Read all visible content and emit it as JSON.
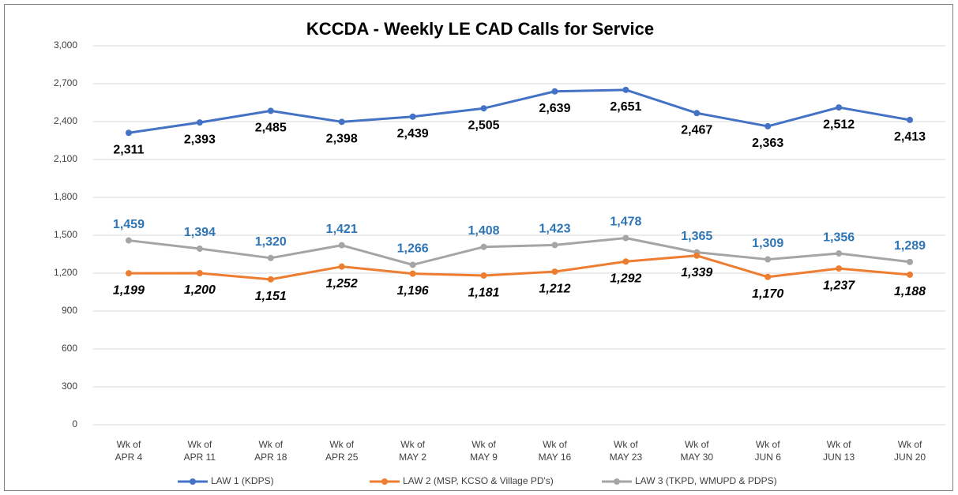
{
  "chart_data": {
    "type": "line",
    "title": "KCCDA - Weekly LE CAD Calls for Service",
    "categories": [
      "Wk of APR 4",
      "Wk of APR 11",
      "Wk of APR 18",
      "Wk of APR 25",
      "Wk of MAY 2",
      "Wk of MAY 9",
      "Wk of MAY 16",
      "Wk of MAY 23",
      "Wk of MAY 30",
      "Wk of JUN 6",
      "Wk of JUN 13",
      "Wk of JUN 20"
    ],
    "series": [
      {
        "name": "LAW 1 (KDPS)",
        "color": "#4472c4",
        "label_color": "#000000",
        "label_position": "below",
        "label_italic": false,
        "values": [
          2311,
          2393,
          2485,
          2398,
          2439,
          2505,
          2639,
          2651,
          2467,
          2363,
          2512,
          2413
        ],
        "value_labels": [
          "2,311",
          "2,393",
          "2,485",
          "2,398",
          "2,439",
          "2,505",
          "2,639",
          "2,651",
          "2,467",
          "2,363",
          "2,512",
          "2,413"
        ]
      },
      {
        "name": "LAW 2 (MSP, KCSO & Village PD's)",
        "color": "#ed7d31",
        "label_color": "#000000",
        "label_position": "below",
        "label_italic": true,
        "values": [
          1199,
          1200,
          1151,
          1252,
          1196,
          1181,
          1212,
          1292,
          1339,
          1170,
          1237,
          1188
        ],
        "value_labels": [
          "1,199",
          "1,200",
          "1,151",
          "1,252",
          "1,196",
          "1,181",
          "1,212",
          "1,292",
          "1,339",
          "1,170",
          "1,237",
          "1,188"
        ]
      },
      {
        "name": "LAW 3 (TKPD, WMUPD & PDPS)",
        "color": "#a5a5a5",
        "label_color": "#2e75b6",
        "label_position": "above",
        "label_italic": false,
        "values": [
          1459,
          1394,
          1320,
          1421,
          1266,
          1408,
          1423,
          1478,
          1365,
          1309,
          1356,
          1289
        ],
        "value_labels": [
          "1,459",
          "1,394",
          "1,320",
          "1,421",
          "1,266",
          "1,408",
          "1,423",
          "1,478",
          "1,365",
          "1,309",
          "1,356",
          "1,289"
        ]
      }
    ],
    "ylim": [
      0,
      3000
    ],
    "yticks": [
      0,
      300,
      600,
      900,
      {
        "value": 1200,
        "label": "1,200"
      },
      {
        "value": 1500,
        "label": "1,500"
      },
      {
        "value": 1800,
        "label": "1,800"
      },
      {
        "value": 2100,
        "label": "2,100"
      },
      {
        "value": 2400,
        "label": "2,400"
      },
      {
        "value": 2700,
        "label": "2,700"
      },
      {
        "value": 3000,
        "label": "3,000"
      }
    ],
    "grid": true,
    "legend": "bottom"
  }
}
